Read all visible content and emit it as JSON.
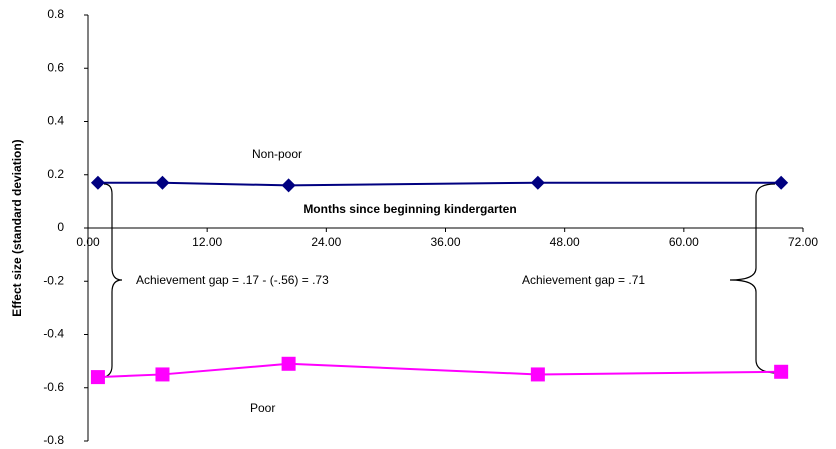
{
  "chart_data": {
    "type": "line",
    "x_label": "Months since beginning kindergarten",
    "y_label": "Effect size (standard deviation)",
    "x": [
      1,
      7.5,
      20.2,
      45.3,
      69.8
    ],
    "series": [
      {
        "name": "Non-poor",
        "color": "#000080",
        "marker": "diamond",
        "values": [
          0.17,
          0.17,
          0.16,
          0.17,
          0.17
        ]
      },
      {
        "name": "Poor",
        "color": "#ff00ff",
        "marker": "square",
        "values": [
          -0.56,
          -0.55,
          -0.51,
          -0.55,
          -0.54
        ]
      }
    ],
    "annotations": [
      "Achievement gap = .17 - (-.56) = .73",
      "Achievement gap = .71"
    ],
    "xlim": [
      0,
      72
    ],
    "xticks": [
      {
        "value": 0,
        "label": "0.00"
      },
      {
        "value": 12,
        "label": "12.00"
      },
      {
        "value": 24,
        "label": "24.00"
      },
      {
        "value": 36,
        "label": "36.00"
      },
      {
        "value": 48,
        "label": "48.00"
      },
      {
        "value": 60,
        "label": "60.00"
      },
      {
        "value": 72,
        "label": "72.00"
      }
    ],
    "ylim": [
      -0.8,
      0.8
    ],
    "yticks": [
      -0.8,
      -0.6,
      -0.4,
      -0.2,
      0,
      0.2,
      0.4,
      0.6,
      0.8
    ],
    "grid": false
  }
}
